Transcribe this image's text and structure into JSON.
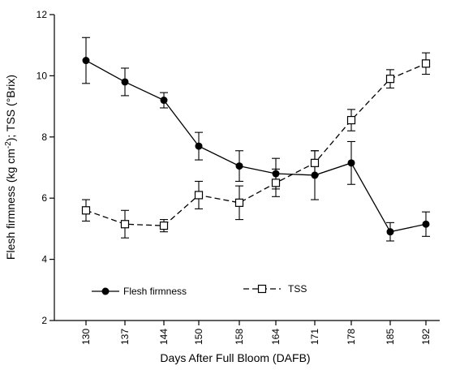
{
  "chart_data": {
    "type": "line",
    "xlabel": "Days After Full Bloom (DAFB)",
    "ylabel_parts": [
      "Flesh firmness (kg cm",
      "-2",
      ");   TSS (°Brix)"
    ],
    "categories": [
      "130",
      "137",
      "144",
      "150",
      "158",
      "164",
      "171",
      "178",
      "185",
      "192"
    ],
    "ylim": [
      2,
      12
    ],
    "yticks": [
      "2",
      "4",
      "6",
      "8",
      "10",
      "12"
    ],
    "grid": false,
    "legend_position": "bottom-left",
    "series": [
      {
        "name": "Flesh firmness",
        "marker": "filled-circle",
        "line_style": "solid",
        "color": "#000000",
        "values": [
          10.5,
          9.8,
          9.2,
          7.7,
          7.05,
          6.8,
          6.75,
          7.15,
          4.9,
          5.15
        ],
        "errors": [
          0.75,
          0.45,
          0.25,
          0.45,
          0.5,
          0.5,
          0.8,
          0.7,
          0.3,
          0.4
        ]
      },
      {
        "name": "TSS",
        "marker": "open-square",
        "line_style": "dashed",
        "color": "#000000",
        "values": [
          5.6,
          5.15,
          5.1,
          6.1,
          5.85,
          6.5,
          7.15,
          8.55,
          9.9,
          10.4
        ],
        "errors": [
          0.35,
          0.45,
          0.2,
          0.45,
          0.55,
          0.45,
          0.4,
          0.35,
          0.3,
          0.35
        ]
      }
    ]
  }
}
